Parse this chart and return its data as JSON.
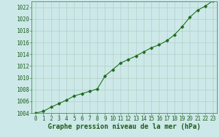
{
  "x": [
    0,
    1,
    2,
    3,
    4,
    5,
    6,
    7,
    8,
    9,
    10,
    11,
    12,
    13,
    14,
    15,
    16,
    17,
    18,
    19,
    20,
    21,
    22,
    23
  ],
  "y": [
    1004.0,
    1004.3,
    1005.0,
    1005.6,
    1006.2,
    1006.9,
    1007.3,
    1007.7,
    1008.1,
    1010.3,
    1011.4,
    1012.5,
    1013.1,
    1013.7,
    1014.4,
    1015.1,
    1015.6,
    1016.3,
    1017.3,
    1018.7,
    1020.3,
    1021.5,
    1022.2,
    1023.1
  ],
  "line_color": "#1a6b1a",
  "marker": "D",
  "marker_size": 2.5,
  "bg_color": "#cce8e8",
  "grid_color": "#aac8bb",
  "plot_bg": "#cce8e8",
  "spine_color": "#448844",
  "title": "Graphe pression niveau de la mer (hPa)",
  "xlim": [
    -0.5,
    23.5
  ],
  "ylim": [
    1004,
    1023
  ],
  "yticks": [
    1004,
    1006,
    1008,
    1010,
    1012,
    1014,
    1016,
    1018,
    1020,
    1022
  ],
  "xticks": [
    0,
    1,
    2,
    3,
    4,
    5,
    6,
    7,
    8,
    9,
    10,
    11,
    12,
    13,
    14,
    15,
    16,
    17,
    18,
    19,
    20,
    21,
    22,
    23
  ],
  "title_fontsize": 7.0,
  "tick_fontsize": 5.5,
  "tick_color": "#1a5c1a",
  "title_color": "#1a5c1a",
  "linewidth": 0.8
}
